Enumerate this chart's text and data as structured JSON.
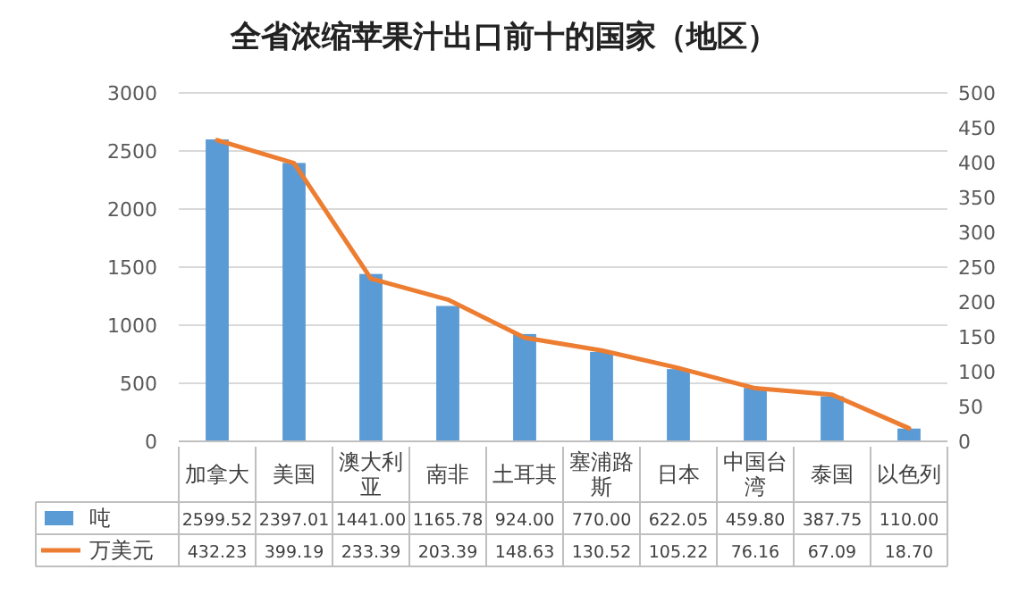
{
  "chart_data": {
    "type": "bar",
    "title": "全省浓缩苹果汁出口前十的国家（地区）",
    "categories": [
      "加拿大",
      "美国",
      "澳大利亚",
      "南非",
      "土耳其",
      "塞浦路斯",
      "日本",
      "中国台湾",
      "泰国",
      "以色列"
    ],
    "series": [
      {
        "name": "吨",
        "color": "#5b9bd5",
        "values": [
          2599.52,
          2397.01,
          1441.0,
          1165.78,
          924.0,
          770.0,
          622.05,
          459.8,
          387.75,
          110.0
        ],
        "value_labels": [
          "2599.52",
          "2397.01",
          "1441.00",
          "1165.78",
          "924.00",
          "770.00",
          "622.05",
          "459.80",
          "387.75",
          "110.00"
        ]
      },
      {
        "name": "万美元",
        "type": "line",
        "axis": "y2",
        "color": "#ed7d31",
        "values": [
          432.23,
          399.19,
          233.39,
          203.39,
          148.63,
          130.52,
          105.22,
          76.16,
          67.09,
          18.7
        ],
        "value_labels": [
          "432.23",
          "399.19",
          "233.39",
          "203.39",
          "148.63",
          "130.52",
          "105.22",
          "76.16",
          "67.09",
          "18.70"
        ]
      }
    ],
    "ylim": [
      0,
      3000
    ],
    "yticks": [
      0,
      500,
      1000,
      1500,
      2000,
      2500,
      3000
    ],
    "y2lim": [
      0,
      500
    ],
    "y2ticks": [
      0,
      50,
      100,
      150,
      200,
      250,
      300,
      350,
      400,
      450,
      500
    ],
    "grid": "y",
    "legend": "bottom",
    "marker": "none",
    "line_style": "solid"
  }
}
